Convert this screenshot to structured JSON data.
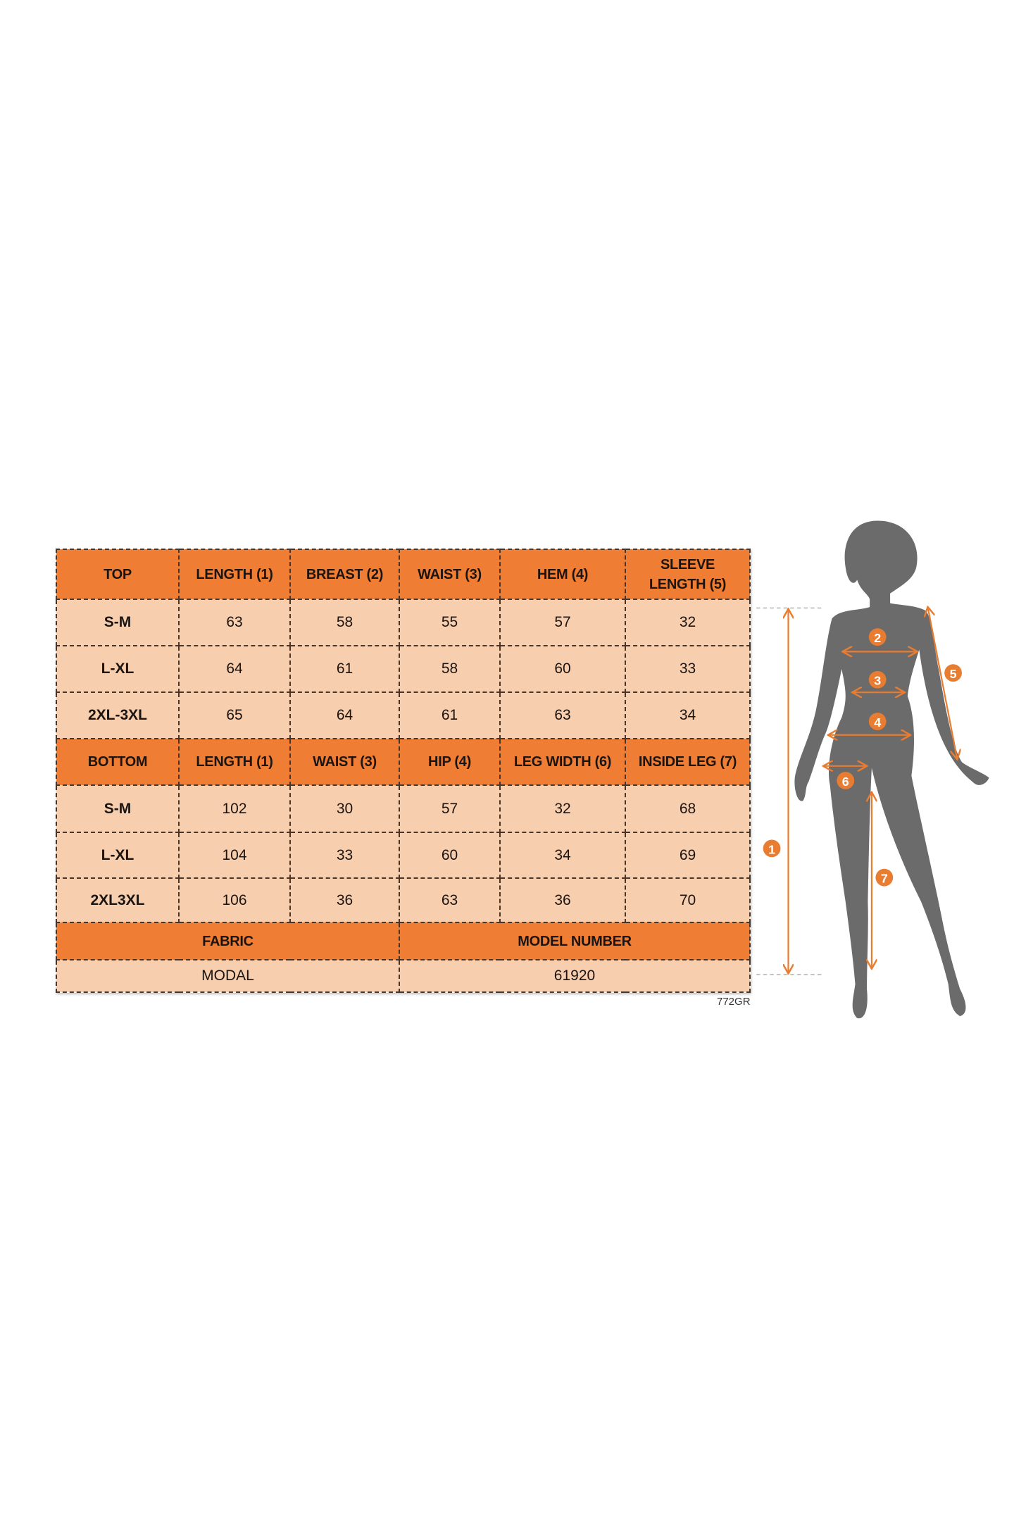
{
  "top": {
    "headers": [
      "TOP",
      "LENGTH (1)",
      "BREAST (2)",
      "WAIST (3)",
      "HEM (4)",
      "SLEEVE LENGTH (5)"
    ],
    "rows": [
      [
        "S-M",
        "63",
        "58",
        "55",
        "57",
        "32"
      ],
      [
        "L-XL",
        "64",
        "61",
        "58",
        "60",
        "33"
      ],
      [
        "2XL-3XL",
        "65",
        "64",
        "61",
        "63",
        "34"
      ]
    ]
  },
  "bottom": {
    "headers": [
      "BOTTOM",
      "LENGTH (1)",
      "WAIST (3)",
      "HIP (4)",
      "LEG WIDTH (6)",
      "INSIDE LEG (7)"
    ],
    "rows": [
      [
        "S-M",
        "102",
        "30",
        "57",
        "32",
        "68"
      ],
      [
        "L-XL",
        "104",
        "33",
        "60",
        "34",
        "69"
      ],
      [
        "2XL3XL",
        "106",
        "36",
        "63",
        "36",
        "70"
      ]
    ]
  },
  "info": {
    "fabric_label": "FABRIC",
    "model_label": "MODEL NUMBER",
    "fabric_value": "MODAL",
    "model_value": "61920"
  },
  "code": "772GR",
  "figure": {
    "markers": [
      "1",
      "2",
      "3",
      "4",
      "5",
      "6",
      "7"
    ],
    "accent_color": "#e87d32",
    "silhouette_color": "#6b6b6b"
  },
  "colors": {
    "header_bg": "#ef7d33",
    "row_bg": "#f8cfae"
  }
}
